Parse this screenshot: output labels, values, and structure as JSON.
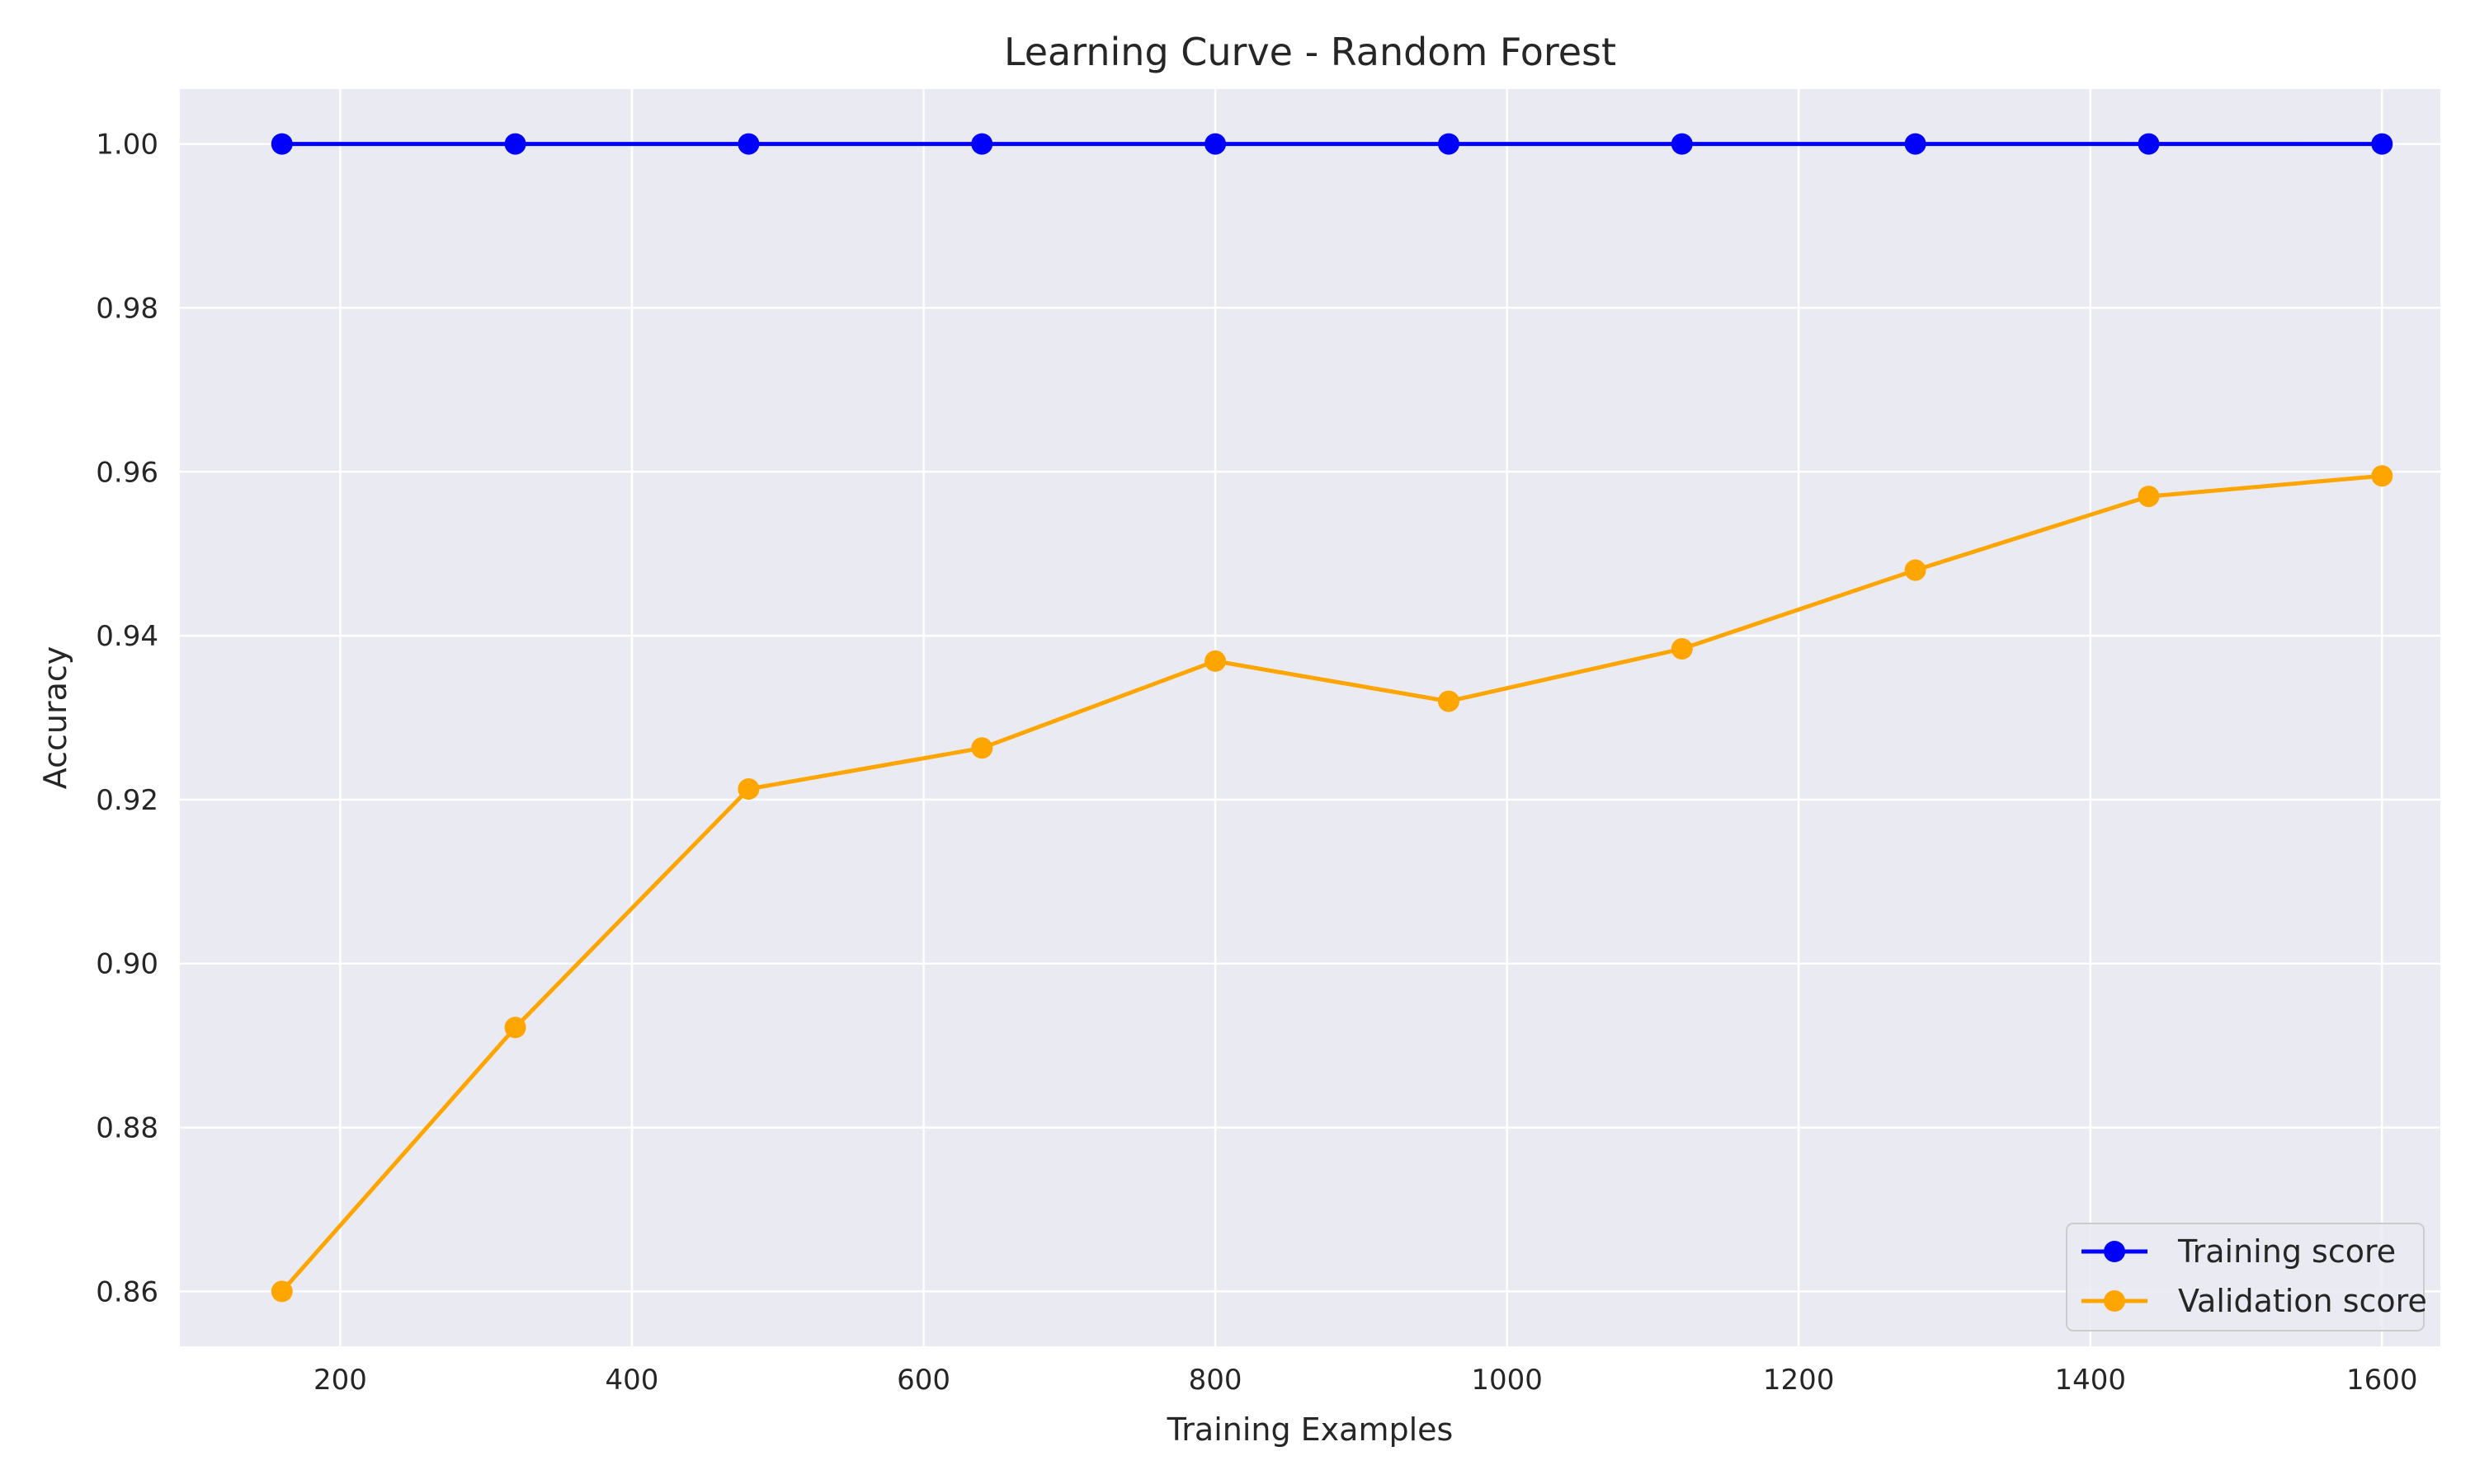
{
  "chart_data": {
    "type": "line",
    "title": "Learning Curve - Random Forest",
    "xlabel": "Training Examples",
    "ylabel": "Accuracy",
    "xlim": [
      90,
      1640
    ],
    "ylim": [
      0.8533,
      1.0067
    ],
    "xticks": [
      200,
      400,
      600,
      800,
      1000,
      1200,
      1400,
      1600
    ],
    "xtick_labels": [
      "200",
      "400",
      "600",
      "800",
      "1000",
      "1200",
      "1400",
      "1600"
    ],
    "yticks": [
      0.86,
      0.88,
      0.9,
      0.92,
      0.94,
      0.96,
      0.98,
      1.0
    ],
    "ytick_labels": [
      "0.86",
      "0.88",
      "0.90",
      "0.92",
      "0.94",
      "0.96",
      "0.98",
      "1.00"
    ],
    "grid": true,
    "background": "#eaeaf2",
    "legend_position": "lower-right",
    "x": [
      160,
      320,
      480,
      640,
      800,
      960,
      1120,
      1280,
      1440,
      1600
    ],
    "series": [
      {
        "name": "Training score",
        "color": "#0000ff",
        "marker": "circle",
        "values": [
          1.0,
          1.0,
          1.0,
          1.0,
          1.0,
          1.0,
          1.0,
          1.0,
          1.0,
          1.0
        ]
      },
      {
        "name": "Validation score",
        "color": "#ffa500",
        "marker": "circle",
        "values": [
          0.86,
          0.8922,
          0.9213,
          0.9263,
          0.9369,
          0.932,
          0.9384,
          0.948,
          0.957,
          0.9595
        ]
      }
    ]
  }
}
